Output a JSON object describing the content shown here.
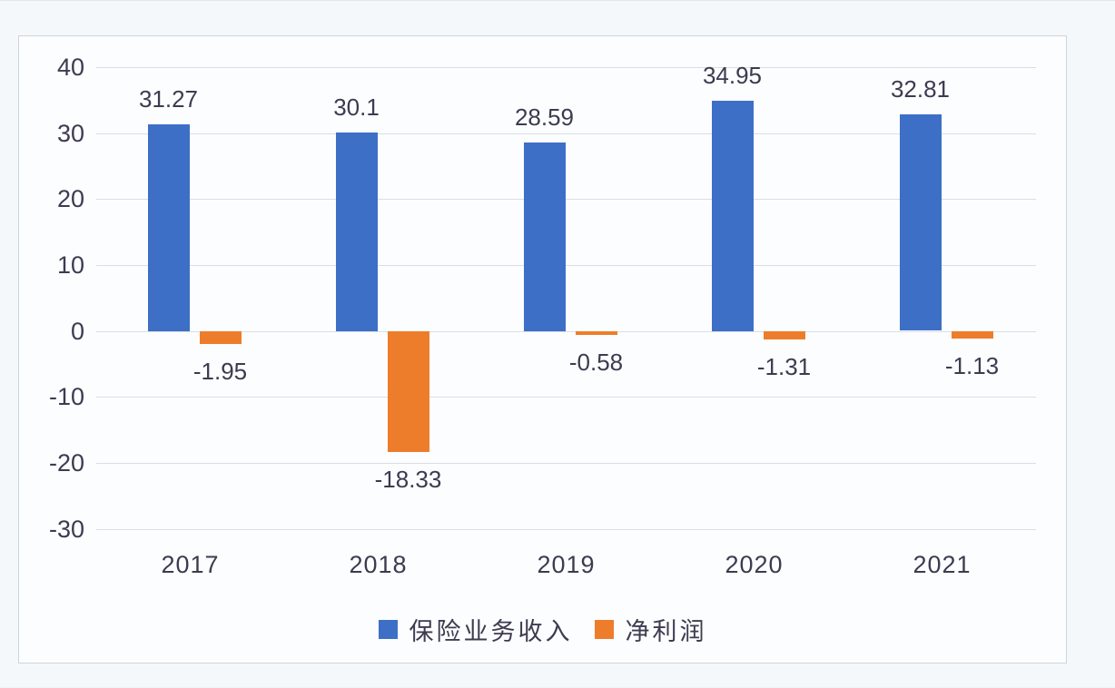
{
  "page": {
    "background_color": "#f5f8fb",
    "frame_background_color": "#fcfdff",
    "frame_border_color": "#ccd5dc",
    "gridline_color": "#d9dee4",
    "text_color": "#3e3a50"
  },
  "chart_data": {
    "type": "bar",
    "title": "",
    "categories": [
      "2017",
      "2018",
      "2019",
      "2020",
      "2021"
    ],
    "series": [
      {
        "key": "insurance-income",
        "name": "保险业务收入",
        "color": "#3d6fc7",
        "values": [
          31.27,
          30.1,
          28.59,
          34.95,
          32.81
        ]
      },
      {
        "key": "net-profit",
        "name": "净利润",
        "color": "#ed7d2b",
        "values": [
          -1.95,
          -18.33,
          -0.58,
          -1.31,
          -1.13
        ]
      }
    ],
    "ylim": [
      -30,
      40
    ],
    "yticks": [
      40,
      30,
      20,
      10,
      0,
      -10,
      -20,
      -30
    ],
    "grid": true,
    "data_labels": true,
    "legend_position": "bottom"
  }
}
